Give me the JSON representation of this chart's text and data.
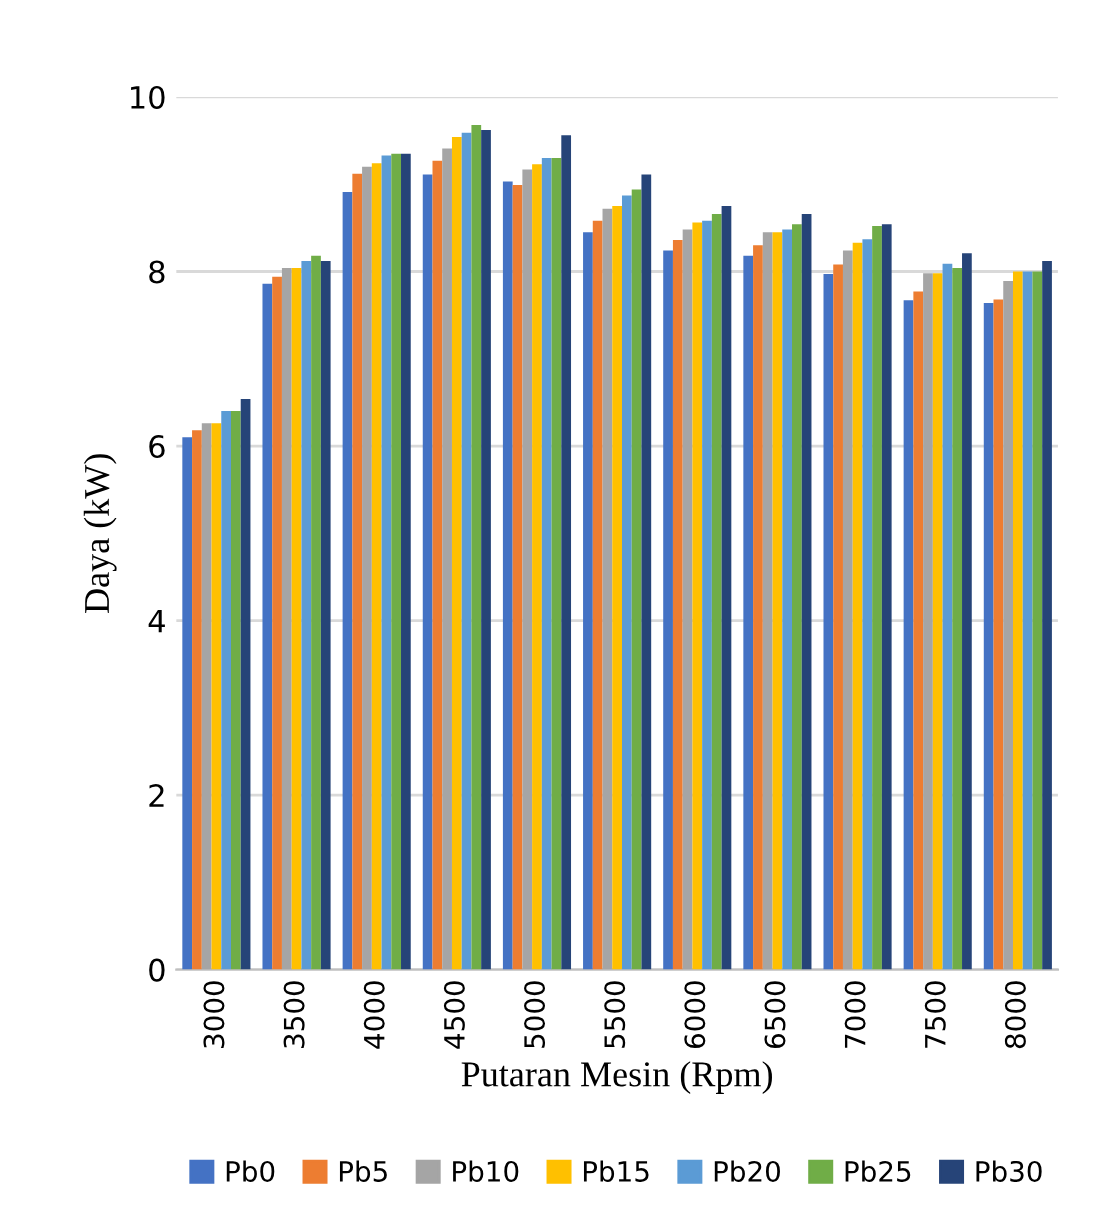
{
  "chart_data": {
    "type": "bar",
    "xlabel": "Putaran Mesin (Rpm)",
    "ylabel": "Daya (kW)",
    "categories": [
      "3000",
      "3500",
      "4000",
      "4500",
      "5000",
      "5500",
      "6000",
      "6500",
      "7000",
      "7500",
      "8000"
    ],
    "series": [
      {
        "name": "Pb0",
        "color": "#4472c4",
        "values": [
          6.1,
          7.86,
          8.91,
          9.11,
          9.03,
          8.45,
          8.24,
          8.18,
          7.97,
          7.67,
          7.64
        ]
      },
      {
        "name": "Pb5",
        "color": "#ed7d31",
        "values": [
          6.18,
          7.94,
          9.12,
          9.27,
          8.99,
          8.58,
          8.36,
          8.3,
          8.08,
          7.77,
          7.68
        ]
      },
      {
        "name": "Pb10",
        "color": "#a5a5a5",
        "values": [
          6.26,
          8.04,
          9.2,
          9.41,
          9.17,
          8.72,
          8.48,
          8.45,
          8.24,
          7.98,
          7.89
        ]
      },
      {
        "name": "Pb15",
        "color": "#ffc000",
        "values": [
          6.26,
          8.04,
          9.24,
          9.54,
          9.23,
          8.75,
          8.56,
          8.45,
          8.33,
          7.98,
          8.0
        ]
      },
      {
        "name": "Pb20",
        "color": "#5b9bd5",
        "values": [
          6.4,
          8.12,
          9.33,
          9.59,
          9.3,
          8.87,
          8.58,
          8.48,
          8.37,
          8.09,
          8.0
        ]
      },
      {
        "name": "Pb25",
        "color": "#70ad47",
        "values": [
          6.4,
          8.18,
          9.35,
          9.68,
          9.3,
          8.94,
          8.66,
          8.54,
          8.52,
          8.04,
          8.0
        ]
      },
      {
        "name": "Pb30",
        "color": "#264478",
        "values": [
          6.54,
          8.12,
          9.35,
          9.62,
          9.56,
          9.11,
          8.75,
          8.66,
          8.54,
          8.21,
          8.12
        ]
      }
    ],
    "ylim": [
      0,
      10
    ],
    "yticks": [
      0,
      2,
      4,
      6,
      8,
      10
    ],
    "grid": "y",
    "legend": "bottom"
  }
}
